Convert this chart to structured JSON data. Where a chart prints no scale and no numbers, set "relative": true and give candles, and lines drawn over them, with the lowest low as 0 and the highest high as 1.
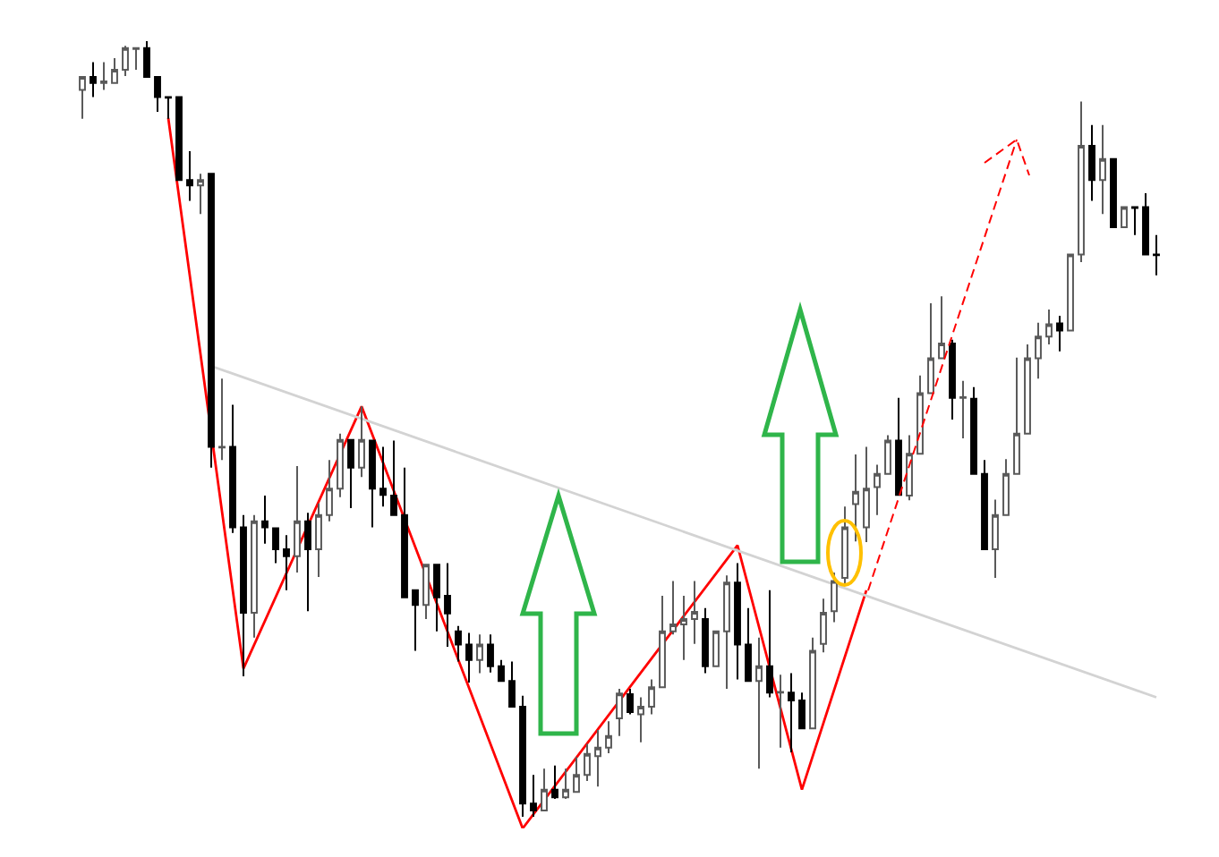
{
  "chart_data": {
    "type": "candlestick",
    "relative": true,
    "categories": [
      null,
      null,
      null,
      null,
      null,
      null,
      null,
      null,
      null,
      null,
      null,
      null,
      null,
      null,
      null,
      null,
      null,
      null,
      null,
      null,
      null,
      null,
      null,
      null,
      null,
      null,
      null,
      null,
      null,
      null,
      null,
      null,
      null,
      null,
      null,
      null,
      null,
      null,
      null,
      null,
      null,
      null,
      null,
      null,
      null,
      null,
      null,
      null,
      null,
      null,
      null,
      null,
      null,
      null,
      null,
      null,
      null,
      null,
      null,
      null,
      null,
      null,
      null,
      null,
      null,
      null,
      null,
      null,
      null,
      null,
      null,
      null,
      null,
      null,
      null,
      null,
      null,
      null,
      null,
      null,
      null,
      null,
      null,
      null,
      null,
      null,
      null,
      null,
      null,
      null,
      null,
      null,
      null,
      null,
      null,
      null,
      null,
      null,
      null,
      null,
      null
    ],
    "ohlc": [
      [
        0.937,
        0.955,
        0.9,
        0.954
      ],
      [
        0.954,
        0.973,
        0.928,
        0.946
      ],
      [
        0.946,
        0.973,
        0.937,
        0.948
      ],
      [
        0.946,
        0.978,
        0.945,
        0.963
      ],
      [
        0.963,
        0.994,
        0.955,
        0.991
      ],
      [
        0.99,
        0.991,
        0.963,
        0.991
      ],
      [
        0.991,
        1.0,
        0.954,
        0.954
      ],
      [
        0.954,
        0.954,
        0.909,
        0.928
      ],
      [
        0.928,
        0.928,
        0.9,
        0.927
      ],
      [
        0.928,
        0.928,
        0.821,
        0.821
      ],
      [
        0.821,
        0.858,
        0.794,
        0.814
      ],
      [
        0.814,
        0.829,
        0.777,
        0.821
      ],
      [
        0.829,
        0.829,
        0.45,
        0.477
      ],
      [
        0.476,
        0.565,
        0.46,
        0.477
      ],
      [
        0.477,
        0.531,
        0.366,
        0.373
      ],
      [
        0.373,
        0.389,
        0.181,
        0.263
      ],
      [
        0.263,
        0.389,
        0.231,
        0.381
      ],
      [
        0.381,
        0.414,
        0.352,
        0.373
      ],
      [
        0.372,
        0.373,
        0.327,
        0.345
      ],
      [
        0.345,
        0.363,
        0.292,
        0.336
      ],
      [
        0.336,
        0.452,
        0.315,
        0.381
      ],
      [
        0.381,
        0.392,
        0.265,
        0.345
      ],
      [
        0.345,
        0.404,
        0.309,
        0.389
      ],
      [
        0.389,
        0.46,
        0.381,
        0.423
      ],
      [
        0.423,
        0.494,
        0.412,
        0.486
      ],
      [
        0.486,
        0.486,
        0.398,
        0.45
      ],
      [
        0.45,
        0.529,
        0.438,
        0.486
      ],
      [
        0.485,
        0.485,
        0.373,
        0.423
      ],
      [
        0.423,
        0.477,
        0.4,
        0.415
      ],
      [
        0.414,
        0.485,
        0.389,
        0.389
      ],
      [
        0.389,
        0.45,
        0.283,
        0.283
      ],
      [
        0.292,
        0.292,
        0.214,
        0.273
      ],
      [
        0.273,
        0.325,
        0.255,
        0.325
      ],
      [
        0.325,
        0.325,
        0.239,
        0.283
      ],
      [
        0.285,
        0.327,
        0.219,
        0.262
      ],
      [
        0.239,
        0.246,
        0.2,
        0.222
      ],
      [
        0.222,
        0.237,
        0.173,
        0.202
      ],
      [
        0.202,
        0.235,
        0.185,
        0.222
      ],
      [
        0.222,
        0.235,
        0.186,
        0.194
      ],
      [
        0.194,
        0.202,
        0.175,
        0.175
      ],
      [
        0.175,
        0.2,
        0.142,
        0.142
      ],
      [
        0.142,
        0.156,
        0.0,
        0.017
      ],
      [
        0.017,
        0.054,
        0.0,
        0.008
      ],
      [
        0.008,
        0.062,
        0.008,
        0.035
      ],
      [
        0.035,
        0.066,
        0.023,
        0.025
      ],
      [
        0.025,
        0.062,
        0.023,
        0.035
      ],
      [
        0.032,
        0.077,
        0.031,
        0.054
      ],
      [
        0.054,
        0.094,
        0.046,
        0.081
      ],
      [
        0.078,
        0.112,
        0.039,
        0.089
      ],
      [
        0.089,
        0.123,
        0.082,
        0.104
      ],
      [
        0.127,
        0.165,
        0.104,
        0.159
      ],
      [
        0.158,
        0.165,
        0.132,
        0.135
      ],
      [
        0.132,
        0.154,
        0.096,
        0.142
      ],
      [
        0.142,
        0.177,
        0.132,
        0.167
      ],
      [
        0.167,
        0.285,
        0.167,
        0.239
      ],
      [
        0.239,
        0.304,
        0.235,
        0.248
      ],
      [
        0.248,
        0.285,
        0.202,
        0.255
      ],
      [
        0.255,
        0.304,
        0.223,
        0.264
      ],
      [
        0.255,
        0.269,
        0.185,
        0.194
      ],
      [
        0.194,
        0.239,
        0.194,
        0.239
      ],
      [
        0.239,
        0.311,
        0.165,
        0.302
      ],
      [
        0.302,
        0.327,
        0.177,
        0.222
      ],
      [
        0.222,
        0.269,
        0.175,
        0.175
      ],
      [
        0.175,
        0.231,
        0.062,
        0.194
      ],
      [
        0.194,
        0.292,
        0.154,
        0.16
      ],
      [
        0.16,
        0.183,
        0.089,
        0.161
      ],
      [
        0.16,
        0.185,
        0.083,
        0.15
      ],
      [
        0.15,
        0.16,
        0.114,
        0.114
      ],
      [
        0.114,
        0.231,
        0.114,
        0.214
      ],
      [
        0.223,
        0.281,
        0.212,
        0.263
      ],
      [
        0.265,
        0.315,
        0.251,
        0.304
      ],
      [
        0.308,
        0.4,
        0.3,
        0.373
      ],
      [
        0.403,
        0.467,
        0.355,
        0.419
      ],
      [
        0.373,
        0.477,
        0.354,
        0.423
      ],
      [
        0.425,
        0.454,
        0.389,
        0.442
      ],
      [
        0.442,
        0.492,
        0.442,
        0.485
      ],
      [
        0.485,
        0.54,
        0.415,
        0.415
      ],
      [
        0.414,
        0.492,
        0.408,
        0.468
      ],
      [
        0.468,
        0.569,
        0.468,
        0.546
      ],
      [
        0.546,
        0.662,
        0.546,
        0.591
      ],
      [
        0.591,
        0.671,
        0.591,
        0.61
      ],
      [
        0.61,
        0.615,
        0.512,
        0.54
      ],
      [
        0.54,
        0.562,
        0.488,
        0.541
      ],
      [
        0.539,
        0.554,
        0.442,
        0.442
      ],
      [
        0.442,
        0.46,
        0.345,
        0.345
      ],
      [
        0.345,
        0.409,
        0.308,
        0.389
      ],
      [
        0.389,
        0.461,
        0.389,
        0.442
      ],
      [
        0.442,
        0.592,
        0.442,
        0.494
      ],
      [
        0.494,
        0.609,
        0.494,
        0.591
      ],
      [
        0.591,
        0.637,
        0.565,
        0.619
      ],
      [
        0.619,
        0.654,
        0.609,
        0.635
      ],
      [
        0.636,
        0.646,
        0.6,
        0.627
      ],
      [
        0.627,
        0.725,
        0.627,
        0.725
      ],
      [
        0.725,
        0.922,
        0.715,
        0.865
      ],
      [
        0.865,
        0.892,
        0.794,
        0.821
      ],
      [
        0.821,
        0.892,
        0.777,
        0.848
      ],
      [
        0.848,
        0.848,
        0.76,
        0.76
      ],
      [
        0.76,
        0.786,
        0.76,
        0.786
      ],
      [
        0.786,
        0.786,
        0.75,
        0.785
      ],
      [
        0.786,
        0.804,
        0.725,
        0.725
      ],
      [
        0.725,
        0.75,
        0.698,
        0.724
      ]
    ],
    "series": [
      {
        "type": "line",
        "color": "#ff0000",
        "values": [
          null,
          null,
          null,
          null,
          null,
          null,
          null,
          null,
          0.901,
          null,
          null,
          null,
          null,
          null,
          null,
          0.191,
          null,
          null,
          null,
          null,
          null,
          null,
          null,
          null,
          null,
          null,
          0.529,
          null,
          null,
          null,
          null,
          null,
          null,
          null,
          null,
          null,
          null,
          null,
          null,
          null,
          null,
          -0.015,
          null,
          null,
          null,
          null,
          null,
          null,
          null,
          null,
          null,
          null,
          null,
          null,
          null,
          null,
          null,
          null,
          null,
          null,
          null,
          0.35,
          null,
          null,
          null,
          null,
          null,
          0.035,
          null,
          null,
          null,
          null,
          null,
          0.292,
          null,
          null,
          null,
          null,
          null,
          null,
          null,
          null,
          null,
          null,
          null,
          null,
          null,
          null,
          null,
          null,
          null,
          null,
          null,
          null,
          null,
          null,
          null,
          null,
          null,
          null,
          null
        ]
      },
      {
        "type": "line",
        "color": "#d3d3d3",
        "values": [
          null,
          null,
          null,
          null,
          null,
          null,
          null,
          null,
          null,
          null,
          null,
          null,
          0.581,
          null,
          null,
          null,
          null,
          null,
          null,
          null,
          null,
          null,
          null,
          null,
          null,
          null,
          null,
          null,
          null,
          null,
          null,
          null,
          null,
          null,
          null,
          null,
          null,
          null,
          null,
          null,
          null,
          null,
          null,
          null,
          null,
          null,
          null,
          null,
          null,
          null,
          null,
          null,
          null,
          null,
          null,
          null,
          null,
          null,
          null,
          null,
          null,
          null,
          null,
          null,
          null,
          null,
          null,
          null,
          null,
          null,
          null,
          null,
          null,
          null,
          null,
          null,
          null,
          null,
          null,
          null,
          null,
          null,
          null,
          null,
          null,
          null,
          null,
          null,
          null,
          null,
          null,
          null,
          null,
          null,
          null,
          null,
          null,
          null,
          null,
          null,
          0.154
        ]
      }
    ]
  }
}
